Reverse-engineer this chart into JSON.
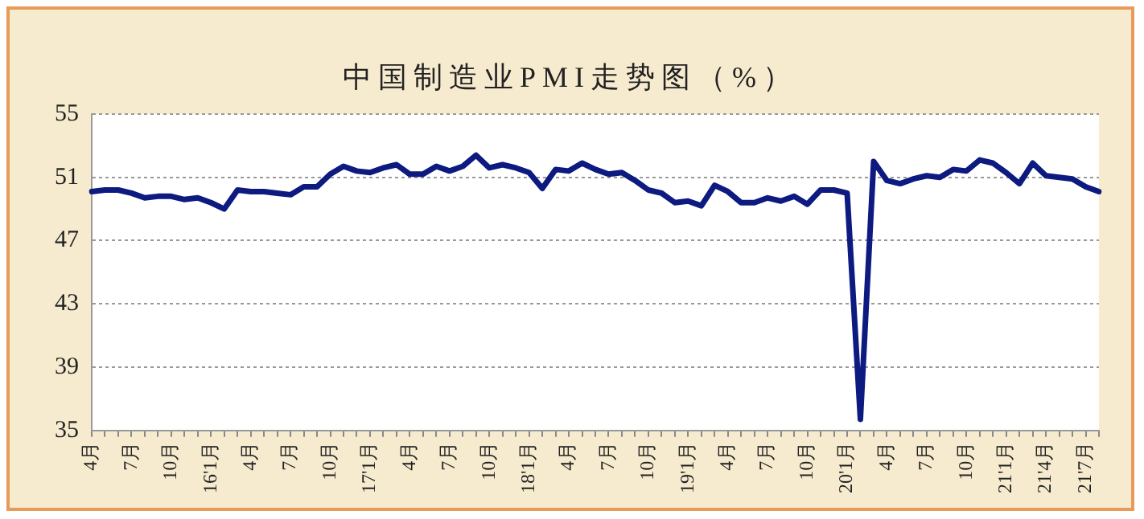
{
  "chart_data": {
    "type": "line",
    "title": "中国制造业PMI走势图（%）",
    "categories": [
      "4月",
      null,
      null,
      "7月",
      null,
      null,
      "10月",
      null,
      null,
      "16'1月",
      null,
      null,
      "4月",
      null,
      null,
      "7月",
      null,
      null,
      "10月",
      null,
      null,
      "17'1月",
      null,
      null,
      "4月",
      null,
      null,
      "7月",
      null,
      null,
      "10月",
      null,
      null,
      "18'1月",
      null,
      null,
      "4月",
      null,
      null,
      "7月",
      null,
      null,
      "10月",
      null,
      null,
      "19'1月",
      null,
      null,
      "4月",
      null,
      null,
      "7月",
      null,
      null,
      "10月",
      null,
      null,
      "20'1月",
      null,
      null,
      "4月",
      null,
      null,
      "7月",
      null,
      null,
      "10月",
      null,
      null,
      "21'1月",
      null,
      null,
      "21'4月",
      null,
      null,
      "21'7月",
      null
    ],
    "series": [
      {
        "color": "#0d1a80",
        "values": [
          50.1,
          50.2,
          50.2,
          50.0,
          49.7,
          49.8,
          49.8,
          49.6,
          49.7,
          49.4,
          49.0,
          50.2,
          50.1,
          50.1,
          50.0,
          49.9,
          50.4,
          50.4,
          51.2,
          51.7,
          51.4,
          51.3,
          51.6,
          51.8,
          51.2,
          51.2,
          51.7,
          51.4,
          51.7,
          52.4,
          51.6,
          51.8,
          51.6,
          51.3,
          50.3,
          51.5,
          51.4,
          51.9,
          51.5,
          51.2,
          51.3,
          50.8,
          50.2,
          50.0,
          49.4,
          49.5,
          49.2,
          50.5,
          50.1,
          49.4,
          49.4,
          49.7,
          49.5,
          49.8,
          49.3,
          50.2,
          50.2,
          50.0,
          35.7,
          52.0,
          50.8,
          50.6,
          50.9,
          51.1,
          51.0,
          51.5,
          51.4,
          52.1,
          51.9,
          51.3,
          50.6,
          51.9,
          51.1,
          51.0,
          50.9,
          50.4,
          50.1
        ]
      }
    ],
    "ylim": [
      35,
      55
    ],
    "yticks": [
      35,
      39,
      43,
      47,
      51,
      55
    ],
    "grid": "y",
    "legend": false,
    "marker": "none",
    "line_style": "solid"
  }
}
